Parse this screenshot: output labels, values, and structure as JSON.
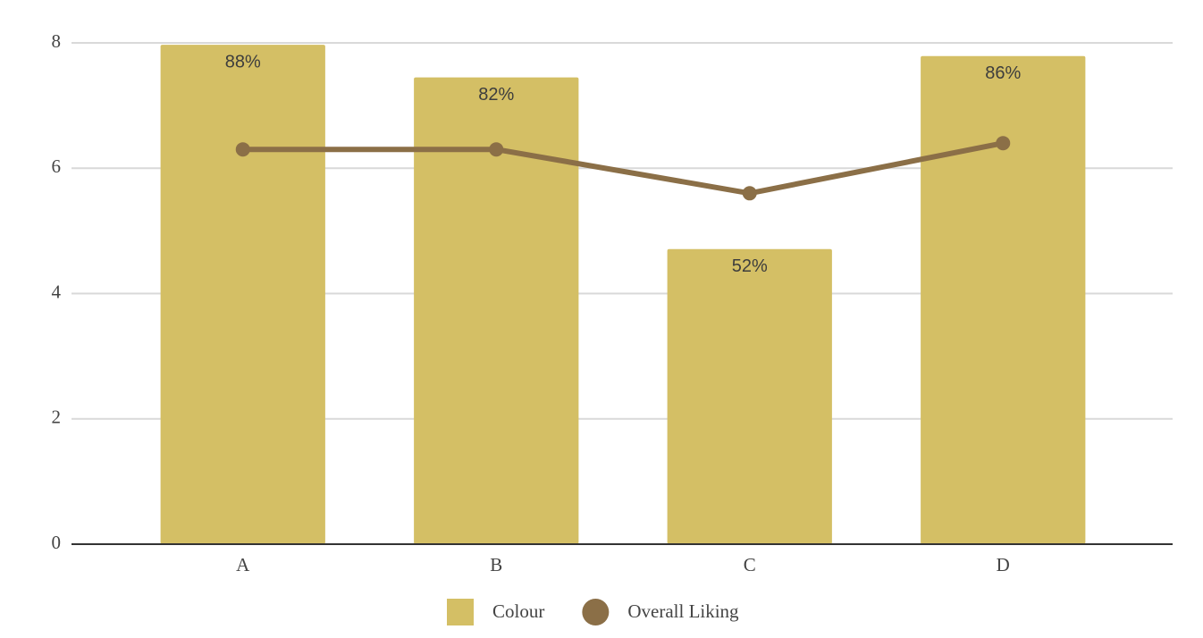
{
  "chart_data": {
    "type": "bar-line",
    "categories": [
      "A",
      "B",
      "C",
      "D"
    ],
    "series": [
      {
        "name": "Colour",
        "type": "bar",
        "color": "#d4bf65",
        "values": [
          7.97,
          7.45,
          4.71,
          7.79
        ],
        "annotations": [
          "88%",
          "82%",
          "52%",
          "86%"
        ]
      },
      {
        "name": "Overall Liking",
        "type": "line",
        "color": "#8b6f47",
        "values": [
          6.3,
          6.3,
          5.6,
          6.4
        ]
      }
    ],
    "ylim": [
      0,
      8
    ],
    "yticks": [
      0,
      2,
      4,
      6,
      8
    ],
    "grid": true,
    "legend": "bottom"
  }
}
